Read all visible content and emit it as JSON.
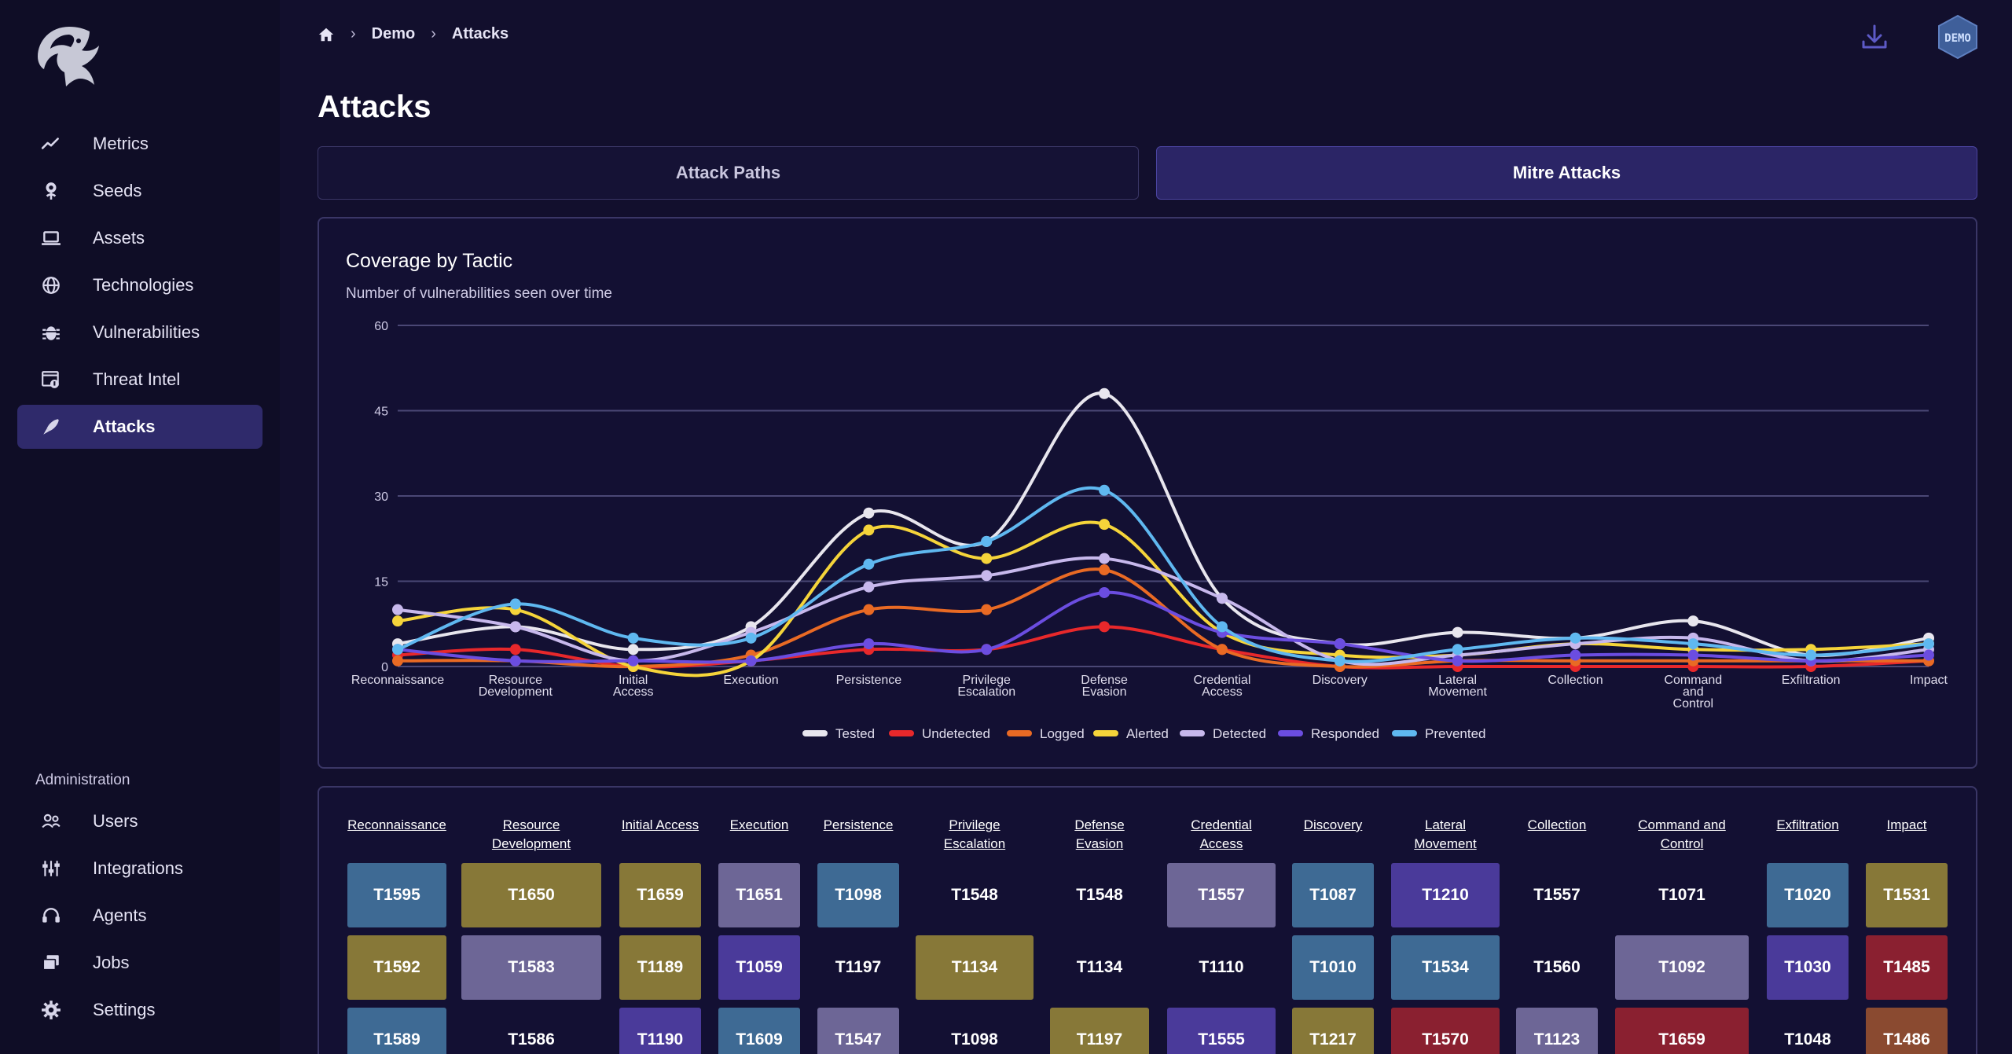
{
  "breadcrumb": {
    "items": [
      "Demo",
      "Attacks"
    ]
  },
  "page": {
    "title": "Attacks",
    "badge": "DEMO"
  },
  "tabs": [
    {
      "label": "Attack Paths",
      "active": false
    },
    {
      "label": "Mitre Attacks",
      "active": true
    }
  ],
  "sidebar": {
    "items": [
      {
        "label": "Metrics",
        "icon": "trend-icon"
      },
      {
        "label": "Seeds",
        "icon": "seed-icon"
      },
      {
        "label": "Assets",
        "icon": "laptop-icon"
      },
      {
        "label": "Technologies",
        "icon": "globe-icon"
      },
      {
        "label": "Vulnerabilities",
        "icon": "bug-icon"
      },
      {
        "label": "Threat Intel",
        "icon": "threat-intel-icon"
      },
      {
        "label": "Attacks",
        "icon": "rocket-icon",
        "active": true
      }
    ],
    "admin_title": "Administration",
    "admin_items": [
      {
        "label": "Users",
        "icon": "users-icon"
      },
      {
        "label": "Integrations",
        "icon": "sliders-icon"
      },
      {
        "label": "Agents",
        "icon": "headset-icon"
      },
      {
        "label": "Jobs",
        "icon": "stack-icon"
      },
      {
        "label": "Settings",
        "icon": "gear-icon"
      }
    ]
  },
  "chart_data": {
    "type": "line",
    "title": "Coverage by Tactic",
    "subtitle": "Number of vulnerabilities seen over time",
    "ylim": [
      0,
      60
    ],
    "yticks": [
      0,
      15,
      30,
      45,
      60
    ],
    "grid": true,
    "legend_position": "bottom",
    "categories": [
      "Reconnaissance",
      "Resource Development",
      "Initial Access",
      "Execution",
      "Persistence",
      "Privilege Escalation",
      "Defense Evasion",
      "Credential Access",
      "Discovery",
      "Lateral Movement",
      "Collection",
      "Command and Control",
      "Exfiltration",
      "Impact"
    ],
    "series": [
      {
        "name": "Tested",
        "color": "#e8e6ee",
        "values": [
          4,
          7,
          3,
          7,
          27,
          22,
          48,
          12,
          4,
          6,
          5,
          8,
          2,
          5
        ]
      },
      {
        "name": "Undetected",
        "color": "#e8282b",
        "values": [
          2,
          3,
          0,
          1,
          3,
          3,
          7,
          3,
          0,
          0,
          0,
          0,
          0,
          1
        ]
      },
      {
        "name": "Logged",
        "color": "#e96a24",
        "values": [
          1,
          1,
          0,
          2,
          10,
          10,
          17,
          3,
          0,
          1,
          1,
          1,
          1,
          1
        ]
      },
      {
        "name": "Alerted",
        "color": "#f5d43a",
        "values": [
          8,
          10,
          0,
          1,
          24,
          19,
          25,
          6,
          2,
          2,
          4,
          3,
          3,
          4
        ]
      },
      {
        "name": "Detected",
        "color": "#c7b8ec",
        "values": [
          10,
          7,
          1,
          6,
          14,
          16,
          19,
          12,
          1,
          2,
          4,
          5,
          1,
          3
        ]
      },
      {
        "name": "Responded",
        "color": "#6b4de0",
        "values": [
          3,
          1,
          1,
          1,
          4,
          3,
          13,
          6,
          4,
          1,
          2,
          2,
          1,
          2
        ]
      },
      {
        "name": "Prevented",
        "color": "#5fb8f0",
        "values": [
          3,
          11,
          5,
          5,
          18,
          22,
          31,
          7,
          1,
          3,
          5,
          4,
          2,
          4
        ]
      }
    ]
  },
  "tactic_table": {
    "columns": [
      {
        "header": "Reconnaissance",
        "cells": [
          {
            "id": "T1595",
            "color": "#3e6a94"
          },
          {
            "id": "T1592",
            "color": "#877838"
          },
          {
            "id": "T1589",
            "color": "#3e6a94"
          }
        ]
      },
      {
        "header": "Resource\nDevelopment",
        "cells": [
          {
            "id": "T1650",
            "color": "#877838"
          },
          {
            "id": "T1583",
            "color": "#6d6696"
          },
          {
            "id": "T1586",
            "color": ""
          }
        ]
      },
      {
        "header": "Initial Access",
        "cells": [
          {
            "id": "T1659",
            "color": "#877838"
          },
          {
            "id": "T1189",
            "color": "#877838"
          },
          {
            "id": "T1190",
            "color": "#4a3a9a"
          }
        ]
      },
      {
        "header": "Execution",
        "cells": [
          {
            "id": "T1651",
            "color": "#6d6696"
          },
          {
            "id": "T1059",
            "color": "#4a3a9a"
          },
          {
            "id": "T1609",
            "color": "#3e6a94"
          }
        ]
      },
      {
        "header": "Persistence",
        "cells": [
          {
            "id": "T1098",
            "color": "#3e6a94"
          },
          {
            "id": "T1197",
            "color": ""
          },
          {
            "id": "T1547",
            "color": "#6d6696"
          }
        ]
      },
      {
        "header": "Privilege\nEscalation",
        "cells": [
          {
            "id": "T1548",
            "color": ""
          },
          {
            "id": "T1134",
            "color": "#877838"
          },
          {
            "id": "T1098",
            "color": ""
          }
        ]
      },
      {
        "header": "Defense\nEvasion",
        "cells": [
          {
            "id": "T1548",
            "color": ""
          },
          {
            "id": "T1134",
            "color": ""
          },
          {
            "id": "T1197",
            "color": "#877838"
          }
        ]
      },
      {
        "header": "Credential\nAccess",
        "cells": [
          {
            "id": "T1557",
            "color": "#6d6696"
          },
          {
            "id": "T1110",
            "color": ""
          },
          {
            "id": "T1555",
            "color": "#4a3a9a"
          }
        ]
      },
      {
        "header": "Discovery",
        "cells": [
          {
            "id": "T1087",
            "color": "#3e6a94"
          },
          {
            "id": "T1010",
            "color": "#3e6a94"
          },
          {
            "id": "T1217",
            "color": "#877838"
          }
        ]
      },
      {
        "header": "Lateral\nMovement",
        "cells": [
          {
            "id": "T1210",
            "color": "#4a3a9a"
          },
          {
            "id": "T1534",
            "color": "#3e6a94"
          },
          {
            "id": "T1570",
            "color": "#8a2030"
          }
        ]
      },
      {
        "header": "Collection",
        "cells": [
          {
            "id": "T1557",
            "color": ""
          },
          {
            "id": "T1560",
            "color": ""
          },
          {
            "id": "T1123",
            "color": "#6d6696"
          }
        ]
      },
      {
        "header": "Command and\nControl",
        "cells": [
          {
            "id": "T1071",
            "color": ""
          },
          {
            "id": "T1092",
            "color": "#6d6696"
          },
          {
            "id": "T1659",
            "color": "#8a2030"
          }
        ]
      },
      {
        "header": "Exfiltration",
        "cells": [
          {
            "id": "T1020",
            "color": "#3e6a94"
          },
          {
            "id": "T1030",
            "color": "#4a3a9a"
          },
          {
            "id": "T1048",
            "color": ""
          }
        ]
      },
      {
        "header": "Impact",
        "cells": [
          {
            "id": "T1531",
            "color": "#877838"
          },
          {
            "id": "T1485",
            "color": "#8a2030"
          },
          {
            "id": "T1486",
            "color": "#8a4a30"
          }
        ]
      }
    ]
  }
}
